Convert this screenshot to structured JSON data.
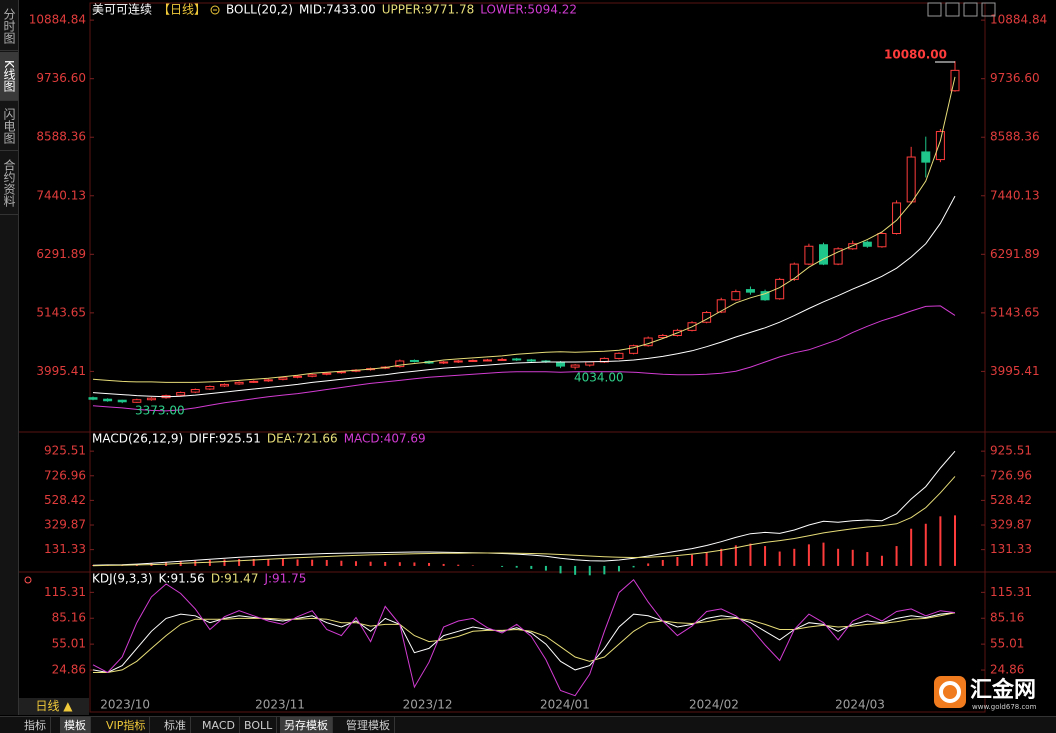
{
  "sidebar": [
    "分时图",
    "K线图",
    "闪电图",
    "合约资料"
  ],
  "period_button": "日线 ▲",
  "tabs": [
    "指标",
    "模板",
    "VIP指标",
    "标准",
    "MACD",
    "BOLL",
    "另存模板",
    "管理模板"
  ],
  "logo": {
    "name": "汇金网",
    "url": "www.gold678.com"
  },
  "chart_data": [
    {
      "type": "candlestick",
      "title": "美可可连续",
      "period": "【日线】",
      "indicator": "BOLL(20,2)",
      "up_color": "#ff3c3c",
      "down_color": "#1fc58a",
      "open": [
        3480,
        3450,
        3430,
        3390,
        3440,
        3480,
        3530,
        3590,
        3650,
        3710,
        3750,
        3790,
        3810,
        3840,
        3880,
        3900,
        3940,
        3970,
        4000,
        4030,
        4060,
        4090,
        4210,
        4190,
        4160,
        4180,
        4200,
        4210,
        4230,
        4240,
        4220,
        4200,
        4180,
        4080,
        4120,
        4180,
        4250,
        4350,
        4500,
        4660,
        4700,
        4800,
        4960,
        5160,
        5400,
        5600,
        5560,
        5420,
        5800,
        6100,
        6480,
        6100,
        6400,
        6530,
        6440,
        6700,
        7320,
        8300,
        8150,
        9500
      ],
      "high": [
        3500,
        3470,
        3440,
        3460,
        3490,
        3540,
        3600,
        3660,
        3720,
        3760,
        3800,
        3820,
        3850,
        3890,
        3920,
        3950,
        3980,
        4010,
        4040,
        4070,
        4100,
        4230,
        4230,
        4210,
        4200,
        4220,
        4230,
        4240,
        4260,
        4260,
        4240,
        4220,
        4200,
        4140,
        4190,
        4270,
        4370,
        4520,
        4680,
        4730,
        4830,
        4980,
        5180,
        5440,
        5600,
        5660,
        5600,
        5830,
        6130,
        6500,
        6520,
        6430,
        6560,
        6560,
        6730,
        7350,
        8400,
        8600,
        8750,
        10080
      ],
      "low": [
        3430,
        3400,
        3373,
        3380,
        3420,
        3460,
        3510,
        3570,
        3630,
        3690,
        3730,
        3770,
        3790,
        3820,
        3860,
        3880,
        3920,
        3950,
        3980,
        4010,
        4040,
        4070,
        4170,
        4140,
        4140,
        4160,
        4180,
        4190,
        4210,
        4200,
        4180,
        4160,
        4060,
        4034,
        4090,
        4160,
        4230,
        4330,
        4480,
        4640,
        4680,
        4780,
        4940,
        5140,
        5380,
        5500,
        5380,
        5400,
        5770,
        6080,
        6080,
        6080,
        6380,
        6420,
        6420,
        6680,
        7280,
        7800,
        8100,
        9480
      ],
      "close": [
        3450,
        3420,
        3400,
        3440,
        3470,
        3520,
        3580,
        3640,
        3700,
        3740,
        3780,
        3800,
        3830,
        3870,
        3900,
        3930,
        3960,
        3990,
        4020,
        4050,
        4080,
        4200,
        4190,
        4160,
        4180,
        4200,
        4210,
        4220,
        4230,
        4220,
        4200,
        4180,
        4100,
        4120,
        4180,
        4250,
        4350,
        4500,
        4650,
        4700,
        4800,
        4950,
        5150,
        5400,
        5560,
        5550,
        5400,
        5800,
        6100,
        6450,
        6100,
        6400,
        6500,
        6450,
        6700,
        7300,
        8200,
        8100,
        8700,
        9900
      ],
      "series": [
        {
          "label": "MID:7433.00",
          "color": "#ffffff",
          "values": [
            3580,
            3560,
            3540,
            3520,
            3510,
            3500,
            3510,
            3530,
            3560,
            3590,
            3620,
            3650,
            3680,
            3710,
            3740,
            3780,
            3810,
            3840,
            3870,
            3900,
            3930,
            3970,
            4000,
            4030,
            4060,
            4080,
            4100,
            4120,
            4140,
            4160,
            4170,
            4180,
            4180,
            4180,
            4185,
            4190,
            4200,
            4220,
            4250,
            4290,
            4340,
            4400,
            4480,
            4570,
            4670,
            4760,
            4850,
            4960,
            5090,
            5230,
            5360,
            5480,
            5610,
            5730,
            5860,
            6020,
            6240,
            6500,
            6900,
            7433
          ]
        },
        {
          "label": "UPPER:9771.78",
          "color": "#e6dc78",
          "values": [
            3840,
            3820,
            3800,
            3790,
            3790,
            3780,
            3780,
            3780,
            3790,
            3800,
            3820,
            3840,
            3860,
            3890,
            3920,
            3960,
            3980,
            4000,
            4020,
            4040,
            4070,
            4120,
            4150,
            4180,
            4220,
            4240,
            4260,
            4280,
            4300,
            4330,
            4350,
            4370,
            4380,
            4370,
            4380,
            4390,
            4410,
            4460,
            4540,
            4640,
            4750,
            4870,
            5020,
            5180,
            5340,
            5440,
            5520,
            5640,
            5820,
            6040,
            6200,
            6340,
            6460,
            6580,
            6730,
            6960,
            7300,
            7730,
            8520,
            9771.78
          ]
        },
        {
          "label": "LOWER:5094.22",
          "color": "#d23cd2",
          "values": [
            3320,
            3300,
            3280,
            3250,
            3230,
            3220,
            3240,
            3280,
            3330,
            3380,
            3420,
            3460,
            3500,
            3530,
            3560,
            3600,
            3640,
            3680,
            3720,
            3760,
            3790,
            3820,
            3850,
            3880,
            3900,
            3920,
            3940,
            3960,
            3980,
            3990,
            3990,
            3990,
            3980,
            3990,
            3990,
            3990,
            3990,
            3980,
            3960,
            3940,
            3930,
            3930,
            3940,
            3960,
            4000,
            4080,
            4180,
            4280,
            4360,
            4420,
            4520,
            4620,
            4760,
            4880,
            4990,
            5080,
            5180,
            5270,
            5280,
            5094.22
          ]
        }
      ],
      "ylim": [
        2807,
        11221
      ],
      "yticks": [
        10884.84,
        {
          "value": 9736.6,
          "label": "9736.60"
        },
        8588.36,
        7440.13,
        6291.89,
        5143.65,
        3995.41
      ],
      "annotations": [
        "10080.00",
        "3373.00",
        "4034.00"
      ],
      "x_labels": [
        "2023/10",
        "2023/11",
        "2023/12",
        "2024/01",
        "2024/02",
        "2024/03"
      ]
    },
    {
      "type": "macd",
      "title": "MACD(26,12,9)",
      "up_color": "#ff3c3c",
      "down_color": "#1fc58a",
      "series": [
        {
          "label": "DIFF:925.51",
          "color": "#ffffff",
          "values": [
            5,
            8,
            10,
            15,
            22,
            30,
            38,
            46,
            54,
            62,
            70,
            76,
            82,
            88,
            92,
            96,
            100,
            102,
            104,
            106,
            108,
            110,
            112,
            112,
            110,
            108,
            106,
            104,
            100,
            95,
            88,
            78,
            62,
            50,
            42,
            40,
            48,
            62,
            80,
            100,
            120,
            140,
            165,
            195,
            230,
            260,
            270,
            262,
            290,
            330,
            360,
            352,
            365,
            370,
            365,
            420,
            540,
            640,
            790,
            925.51
          ]
        },
        {
          "label": "DEA:721.66",
          "color": "#e6dc78",
          "values": [
            2,
            4,
            6,
            8,
            11,
            15,
            20,
            25,
            30,
            36,
            42,
            48,
            54,
            60,
            66,
            71,
            76,
            81,
            85,
            89,
            92,
            95,
            98,
            100,
            102,
            103,
            104,
            104,
            104,
            102,
            100,
            97,
            92,
            86,
            80,
            74,
            70,
            68,
            70,
            76,
            84,
            95,
            109,
            126,
            147,
            170,
            190,
            204,
            221,
            243,
            266,
            283,
            300,
            314,
            324,
            340,
            390,
            470,
            590,
            721.66
          ]
        },
        {
          "label": "MACD:407.69",
          "color": "#d23cd2",
          "bars": true,
          "values": [
            6,
            8,
            8,
            14,
            22,
            30,
            36,
            42,
            48,
            52,
            56,
            56,
            56,
            56,
            52,
            50,
            48,
            42,
            38,
            34,
            32,
            30,
            28,
            24,
            16,
            10,
            4,
            0,
            -8,
            -14,
            -24,
            -38,
            -60,
            -72,
            -76,
            -68,
            -44,
            -12,
            20,
            48,
            72,
            90,
            112,
            138,
            166,
            180,
            160,
            116,
            138,
            174,
            188,
            138,
            130,
            112,
            82,
            160,
            300,
            340,
            400,
            407.69
          ]
        }
      ],
      "ylim": [
        -49,
        1080
      ],
      "yticks": [
        925.51,
        726.96,
        528.42,
        329.87,
        131.33
      ]
    },
    {
      "type": "line",
      "title": "KDJ(9,3,3)",
      "series": [
        {
          "label": "K:91.56",
          "color": "#ffffff",
          "values": [
            25,
            22,
            30,
            50,
            70,
            85,
            90,
            88,
            80,
            85,
            88,
            86,
            84,
            82,
            85,
            88,
            80,
            75,
            82,
            70,
            85,
            78,
            45,
            50,
            65,
            70,
            75,
            72,
            70,
            74,
            68,
            55,
            35,
            25,
            30,
            50,
            75,
            90,
            88,
            82,
            75,
            78,
            85,
            88,
            86,
            80,
            70,
            60,
            72,
            80,
            78,
            70,
            78,
            82,
            80,
            85,
            88,
            86,
            90,
            91.56
          ]
        },
        {
          "label": "D:91.47",
          "color": "#e6dc78",
          "values": [
            22,
            22,
            25,
            35,
            50,
            65,
            78,
            84,
            84,
            84,
            85,
            85,
            85,
            84,
            84,
            85,
            84,
            80,
            80,
            76,
            78,
            78,
            65,
            58,
            60,
            64,
            70,
            71,
            71,
            72,
            70,
            64,
            52,
            40,
            35,
            40,
            55,
            70,
            80,
            82,
            80,
            79,
            81,
            84,
            85,
            83,
            78,
            72,
            72,
            75,
            77,
            75,
            76,
            78,
            79,
            81,
            84,
            85,
            88,
            91.47
          ]
        },
        {
          "label": "J:91.75",
          "color": "#d23cd2",
          "values": [
            31,
            22,
            40,
            80,
            110,
            125,
            114,
            96,
            72,
            87,
            94,
            88,
            82,
            78,
            87,
            94,
            72,
            65,
            86,
            58,
            99,
            78,
            5,
            34,
            75,
            82,
            85,
            74,
            68,
            78,
            64,
            37,
            1,
            -5,
            20,
            70,
            115,
            130,
            104,
            82,
            65,
            76,
            93,
            96,
            88,
            74,
            54,
            36,
            72,
            90,
            80,
            60,
            82,
            90,
            82,
            93,
            96,
            88,
            94,
            91.75
          ]
        }
      ],
      "ylim": [
        -24,
        139
      ],
      "yticks": [
        115.31,
        85.16,
        55.01,
        24.86
      ]
    }
  ]
}
